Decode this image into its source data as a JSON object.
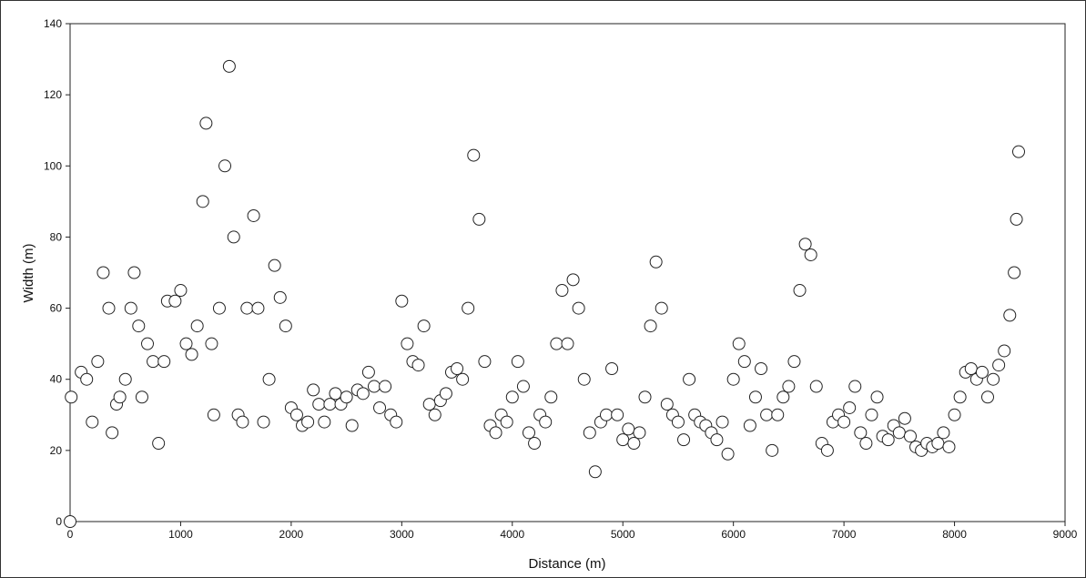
{
  "chart_data": {
    "type": "scatter",
    "x_label": "Distance (m)",
    "y_label": "Width (m)",
    "xlim": [
      0,
      9000
    ],
    "xticks": [
      0,
      1000,
      2000,
      3000,
      4000,
      5000,
      6000,
      7000,
      8000,
      9000
    ],
    "ylim": [
      0,
      140
    ],
    "yticks": [
      0,
      20,
      40,
      60,
      80,
      100,
      120,
      140
    ],
    "grid": false,
    "marker_fill": "#ffffff",
    "marker_stroke": "#222222",
    "x": [
      0,
      10,
      100,
      150,
      200,
      250,
      300,
      350,
      380,
      420,
      450,
      500,
      550,
      580,
      620,
      650,
      700,
      750,
      800,
      850,
      880,
      950,
      1000,
      1050,
      1100,
      1150,
      1200,
      1230,
      1280,
      1300,
      1350,
      1400,
      1440,
      1480,
      1520,
      1560,
      1600,
      1660,
      1700,
      1750,
      1800,
      1850,
      1900,
      1950,
      2000,
      2050,
      2100,
      2150,
      2200,
      2250,
      2300,
      2350,
      2400,
      2450,
      2500,
      2550,
      2600,
      2650,
      2700,
      2750,
      2800,
      2850,
      2900,
      2950,
      3000,
      3050,
      3100,
      3150,
      3200,
      3250,
      3300,
      3350,
      3400,
      3450,
      3500,
      3550,
      3600,
      3650,
      3700,
      3750,
      3800,
      3850,
      3900,
      3950,
      4000,
      4050,
      4100,
      4150,
      4200,
      4250,
      4300,
      4350,
      4400,
      4450,
      4500,
      4550,
      4600,
      4650,
      4700,
      4750,
      4800,
      4850,
      4900,
      4950,
      5000,
      5050,
      5100,
      5150,
      5200,
      5250,
      5300,
      5350,
      5400,
      5450,
      5500,
      5550,
      5600,
      5650,
      5700,
      5750,
      5800,
      5850,
      5900,
      5950,
      6000,
      6050,
      6100,
      6150,
      6200,
      6250,
      6300,
      6350,
      6400,
      6450,
      6500,
      6550,
      6600,
      6650,
      6700,
      6750,
      6800,
      6850,
      6900,
      6950,
      7000,
      7050,
      7100,
      7150,
      7200,
      7250,
      7300,
      7350,
      7400,
      7450,
      7500,
      7550,
      7600,
      7650,
      7700,
      7750,
      7800,
      7850,
      7900,
      7950,
      8000,
      8050,
      8100,
      8150,
      8200,
      8250,
      8300,
      8350,
      8400,
      8450,
      8500,
      8540,
      8560,
      8580
    ],
    "values": [
      0,
      35,
      42,
      40,
      28,
      45,
      70,
      60,
      25,
      33,
      35,
      40,
      60,
      70,
      55,
      35,
      50,
      45,
      22,
      45,
      62,
      62,
      65,
      50,
      47,
      55,
      90,
      112,
      50,
      30,
      60,
      100,
      128,
      80,
      30,
      28,
      60,
      86,
      60,
      28,
      40,
      72,
      63,
      55,
      32,
      30,
      27,
      28,
      37,
      33,
      28,
      33,
      36,
      33,
      35,
      27,
      37,
      36,
      42,
      38,
      32,
      38,
      30,
      28,
      62,
      50,
      45,
      44,
      55,
      33,
      30,
      34,
      36,
      42,
      43,
      40,
      60,
      103,
      85,
      45,
      27,
      25,
      30,
      28,
      35,
      45,
      38,
      25,
      22,
      30,
      28,
      35,
      50,
      65,
      50,
      68,
      60,
      40,
      25,
      14,
      28,
      30,
      43,
      30,
      23,
      26,
      22,
      25,
      35,
      55,
      73,
      60,
      33,
      30,
      28,
      23,
      40,
      30,
      28,
      27,
      25,
      23,
      28,
      19,
      40,
      50,
      45,
      27,
      35,
      43,
      30,
      20,
      30,
      35,
      38,
      45,
      65,
      78,
      75,
      38,
      22,
      20,
      28,
      30,
      28,
      32,
      38,
      25,
      22,
      30,
      35,
      24,
      23,
      27,
      25,
      29,
      24,
      21,
      20,
      22,
      21,
      22,
      25,
      21,
      30,
      35,
      42,
      43,
      40,
      42,
      35,
      40,
      44,
      48,
      58,
      70,
      85,
      104
    ]
  }
}
